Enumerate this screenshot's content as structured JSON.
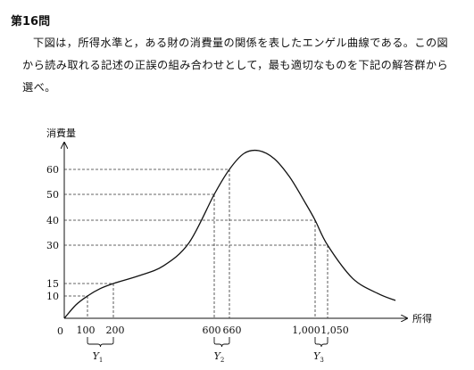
{
  "question": {
    "number": "第16問",
    "text": "下図は，所得水準と，ある財の消費量の関係を表したエンゲル曲線である。この図から読み取れる記述の正誤の組み合わせとして，最も適切なものを下記の解答群から選べ。"
  },
  "chart_data": {
    "type": "line",
    "title": "",
    "ylabel": "消費量",
    "xlabel": "所得",
    "origin_label": "0",
    "y_ticks": [
      {
        "value": 10,
        "label": "10"
      },
      {
        "value": 15,
        "label": "15"
      },
      {
        "value": 30,
        "label": "30"
      },
      {
        "value": 40,
        "label": "40"
      },
      {
        "value": 50,
        "label": "50"
      },
      {
        "value": 60,
        "label": "60"
      }
    ],
    "x_ticks": [
      {
        "value": 100,
        "label": "100"
      },
      {
        "value": 200,
        "label": "200"
      },
      {
        "value": 600,
        "label": "600"
      },
      {
        "value": 660,
        "label": "660"
      },
      {
        "value": 1000,
        "label": "1,000"
      },
      {
        "value": 1050,
        "label": "1,050"
      }
    ],
    "marked_points": [
      {
        "x": 100,
        "y": 10
      },
      {
        "x": 200,
        "y": 15
      },
      {
        "x": 600,
        "y": 50
      },
      {
        "x": 660,
        "y": 60
      },
      {
        "x": 1000,
        "y": 40
      },
      {
        "x": 1050,
        "y": 30
      }
    ],
    "series": [
      {
        "values": [
          [
            0,
            0
          ],
          [
            50,
            6
          ],
          [
            100,
            10
          ],
          [
            150,
            13
          ],
          [
            200,
            15
          ],
          [
            300,
            18
          ],
          [
            400,
            22
          ],
          [
            500,
            31
          ],
          [
            600,
            50
          ],
          [
            660,
            60
          ],
          [
            720,
            66
          ],
          [
            780,
            67
          ],
          [
            840,
            64
          ],
          [
            900,
            57
          ],
          [
            960,
            47
          ],
          [
            1000,
            40
          ],
          [
            1050,
            30
          ],
          [
            1150,
            17
          ],
          [
            1250,
            11
          ],
          [
            1320,
            8
          ]
        ]
      }
    ],
    "ranges": [
      {
        "label": "Y",
        "sub": "1",
        "from": 100,
        "to": 200
      },
      {
        "label": "Y",
        "sub": "2",
        "from": 600,
        "to": 660
      },
      {
        "label": "Y",
        "sub": "3",
        "from": 1000,
        "to": 1050
      }
    ],
    "grid": false,
    "legend": "none"
  }
}
